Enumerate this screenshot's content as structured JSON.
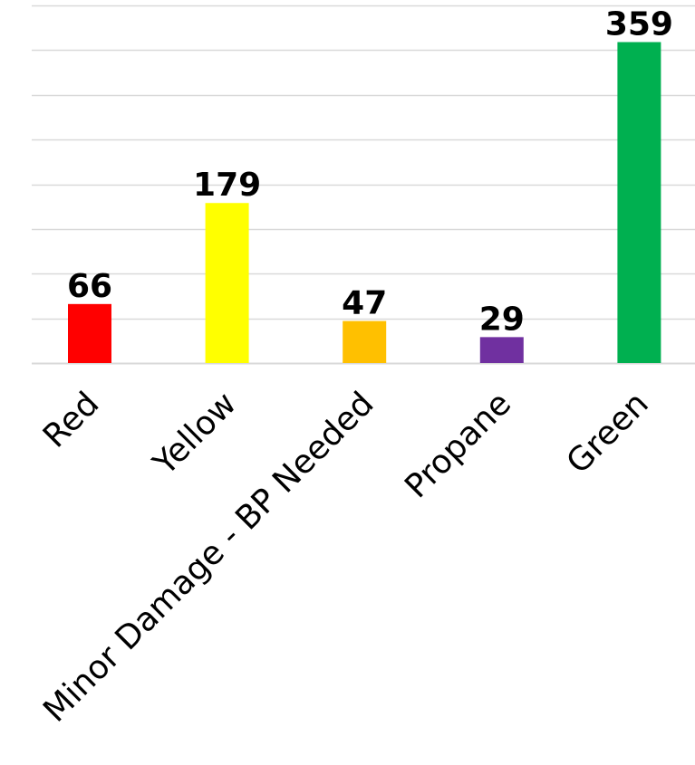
{
  "chart_data": {
    "type": "bar",
    "title": "",
    "xlabel": "",
    "ylabel": "",
    "categories": [
      "Red",
      "Yellow",
      "Minor Damage - BP Needed",
      "Propane",
      "Green"
    ],
    "values": [
      66,
      179,
      47,
      29,
      359
    ],
    "colors": [
      "#ff0000",
      "#ffff00",
      "#ffc000",
      "#7030a0",
      "#00b050"
    ],
    "ylim": [
      0,
      400
    ],
    "ytick_step": 50,
    "grid": true,
    "legend": "none",
    "show_data_labels": true,
    "show_y_tick_labels": false
  }
}
